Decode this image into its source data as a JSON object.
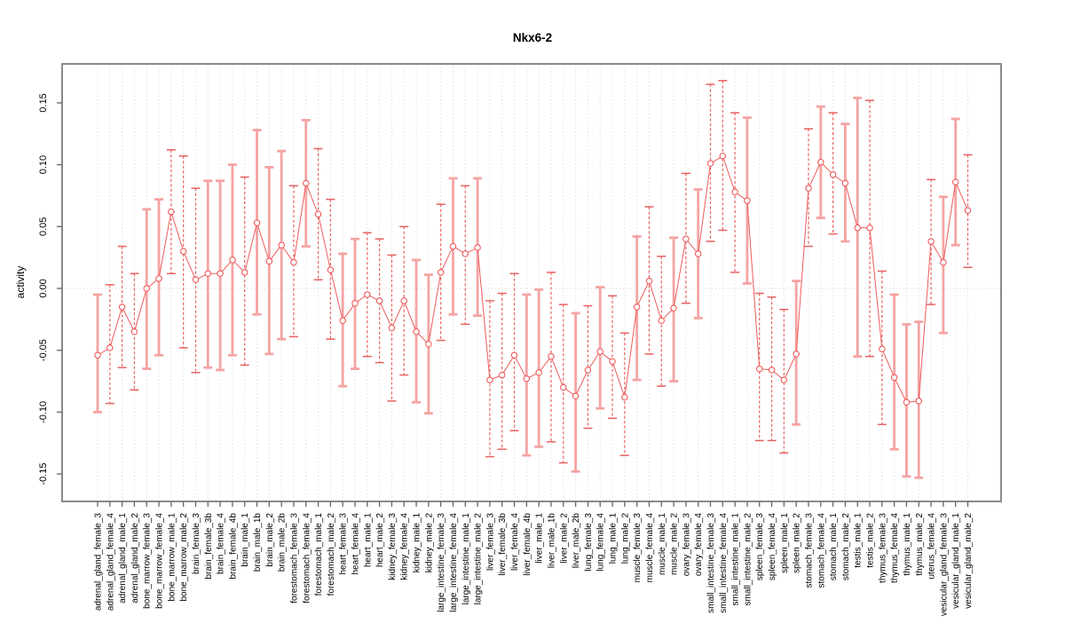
{
  "chart_data": {
    "type": "scatter",
    "error_bars": true,
    "title": "Nkx6-2",
    "xlabel": "",
    "ylabel": "activity",
    "ylim": [
      -0.1722,
      0.1815
    ],
    "grid": true,
    "zero_line": true,
    "legend": "none",
    "yticks": [
      {
        "v": -0.15,
        "label": "-0.15"
      },
      {
        "v": -0.1,
        "label": "-0.10"
      },
      {
        "v": -0.05,
        "label": "-0.05"
      },
      {
        "v": 0.0,
        "label": "0.00"
      },
      {
        "v": 0.05,
        "label": "0.05"
      },
      {
        "v": 0.1,
        "label": "0.10"
      },
      {
        "v": 0.15,
        "label": "0.15"
      }
    ],
    "categories": [
      "adrenal_gland_female_3",
      "adrenal_gland_female_4",
      "adrenal_gland_male_1",
      "adrenal_gland_male_2",
      "bone_marrow_female_3",
      "bone_marrow_female_4",
      "bone_marrow_male_1",
      "bone_marrow_male_2",
      "brain_female_3",
      "brain_female_3b",
      "brain_female_4",
      "brain_female_4b",
      "brain_male_1",
      "brain_male_1b",
      "brain_male_2",
      "brain_male_2b",
      "forestomach_female_3",
      "forestomach_female_4",
      "forestomach_male_1",
      "forestomach_male_2",
      "heart_female_3",
      "heart_female_4",
      "heart_male_1",
      "heart_male_2",
      "kidney_female_3",
      "kidney_female_4",
      "kidney_male_1",
      "kidney_male_2",
      "large_intestine_female_3",
      "large_intestine_female_4",
      "large_intestine_male_1",
      "large_intestine_male_2",
      "liver_female_3",
      "liver_female_3b",
      "liver_female_4",
      "liver_female_4b",
      "liver_male_1",
      "liver_male_1b",
      "liver_male_2",
      "liver_male_2b",
      "lung_female_3",
      "lung_female_4",
      "lung_male_1",
      "lung_male_2",
      "muscle_female_3",
      "muscle_female_4",
      "muscle_male_1",
      "muscle_male_2",
      "ovary_female_3",
      "ovary_female_4",
      "small_intestine_female_3",
      "small_intestine_female_4",
      "small_intestine_male_1",
      "small_intestine_male_2",
      "spleen_female_3",
      "spleen_female_4",
      "spleen_male_1",
      "spleen_male_2",
      "stomach_female_3",
      "stomach_female_4",
      "stomach_male_1",
      "stomach_male_2",
      "testis_male_1",
      "testis_male_2",
      "thymus_female_3",
      "thymus_female_4",
      "thymus_male_1",
      "thymus_male_2",
      "uterus_female_4",
      "vesicular_gland_female_3",
      "vesicular_gland_male_1",
      "vesicular_gland_male_2"
    ],
    "series": [
      {
        "name": "activity",
        "values": [
          -0.054,
          -0.048,
          -0.015,
          -0.035,
          0.0,
          0.008,
          0.062,
          0.03,
          0.007,
          0.012,
          0.012,
          0.023,
          0.013,
          0.053,
          0.022,
          0.035,
          0.021,
          0.085,
          0.06,
          0.015,
          -0.026,
          -0.012,
          -0.005,
          -0.01,
          -0.032,
          -0.01,
          -0.035,
          -0.045,
          0.013,
          0.034,
          0.028,
          0.033,
          -0.074,
          -0.07,
          -0.054,
          -0.073,
          -0.068,
          -0.055,
          -0.08,
          -0.087,
          -0.066,
          -0.051,
          -0.059,
          -0.088,
          -0.015,
          0.006,
          -0.026,
          -0.016,
          0.04,
          0.028,
          0.101,
          0.107,
          0.078,
          0.071,
          -0.065,
          -0.066,
          -0.074,
          -0.053,
          0.081,
          0.102,
          0.092,
          0.085,
          0.049,
          0.049,
          -0.049,
          -0.072,
          -0.092,
          -0.091,
          0.038,
          0.021,
          0.086,
          0.063
        ],
        "ci_low": [
          -0.1,
          -0.093,
          -0.064,
          -0.082,
          -0.065,
          -0.054,
          0.012,
          -0.048,
          -0.068,
          -0.064,
          -0.066,
          -0.054,
          -0.062,
          -0.021,
          -0.053,
          -0.041,
          -0.039,
          0.034,
          0.007,
          -0.041,
          -0.079,
          -0.065,
          -0.055,
          -0.06,
          -0.091,
          -0.07,
          -0.092,
          -0.101,
          -0.042,
          -0.021,
          -0.029,
          -0.022,
          -0.136,
          -0.13,
          -0.115,
          -0.135,
          -0.128,
          -0.124,
          -0.141,
          -0.148,
          -0.113,
          -0.097,
          -0.105,
          -0.135,
          -0.074,
          -0.053,
          -0.079,
          -0.075,
          -0.012,
          -0.024,
          0.038,
          0.047,
          0.013,
          0.004,
          -0.123,
          -0.123,
          -0.133,
          -0.11,
          0.034,
          0.057,
          0.044,
          0.038,
          -0.055,
          -0.055,
          -0.11,
          -0.13,
          -0.152,
          -0.153,
          -0.013,
          -0.036,
          0.035,
          0.017
        ],
        "ci_high": [
          -0.005,
          0.003,
          0.034,
          0.012,
          0.064,
          0.072,
          0.112,
          0.107,
          0.081,
          0.087,
          0.087,
          0.1,
          0.09,
          0.128,
          0.098,
          0.111,
          0.083,
          0.136,
          0.113,
          0.072,
          0.028,
          0.04,
          0.045,
          0.04,
          0.027,
          0.05,
          0.023,
          0.011,
          0.068,
          0.089,
          0.083,
          0.089,
          -0.01,
          -0.004,
          0.012,
          -0.005,
          -0.001,
          0.013,
          -0.013,
          -0.02,
          -0.014,
          0.001,
          -0.006,
          -0.036,
          0.042,
          0.066,
          0.026,
          0.041,
          0.093,
          0.08,
          0.165,
          0.168,
          0.142,
          0.138,
          -0.004,
          -0.007,
          -0.017,
          0.006,
          0.129,
          0.147,
          0.142,
          0.133,
          0.154,
          0.152,
          0.014,
          -0.005,
          -0.029,
          -0.027,
          0.088,
          0.074,
          0.137,
          0.108
        ],
        "bar_styles": [
          "solid",
          "dashed",
          "dashed",
          "dashed",
          "solid",
          "solid",
          "dashed",
          "dashed",
          "dashed",
          "solid",
          "solid",
          "solid",
          "dashed",
          "solid",
          "solid",
          "solid",
          "dashed",
          "solid",
          "dashed",
          "dashed",
          "solid",
          "solid",
          "dashed",
          "dashed",
          "dashed",
          "dashed",
          "solid",
          "solid",
          "dashed",
          "solid",
          "dashed",
          "solid",
          "dashed",
          "dashed",
          "dashed",
          "solid",
          "solid",
          "dashed",
          "dashed",
          "solid",
          "dashed",
          "solid",
          "dashed",
          "dashed",
          "solid",
          "dashed",
          "dashed",
          "solid",
          "dashed",
          "solid",
          "dashed",
          "dashed",
          "dashed",
          "solid",
          "dashed",
          "dashed",
          "dashed",
          "solid",
          "dashed",
          "solid",
          "dashed",
          "solid",
          "solid",
          "dashed",
          "dashed",
          "solid",
          "solid",
          "solid",
          "dashed",
          "solid",
          "solid",
          "dashed"
        ]
      }
    ],
    "colors": {
      "point": "#ef5a5a",
      "line": "#ef5a5a",
      "solid_bar": "#f5a3a3",
      "dashed_bar": "#e96060",
      "grid": "#d8d8d8",
      "zero_line": "#d0d0d0",
      "axis_tick": "#666666",
      "box": "#8a8a8a",
      "text": "#000000"
    }
  }
}
